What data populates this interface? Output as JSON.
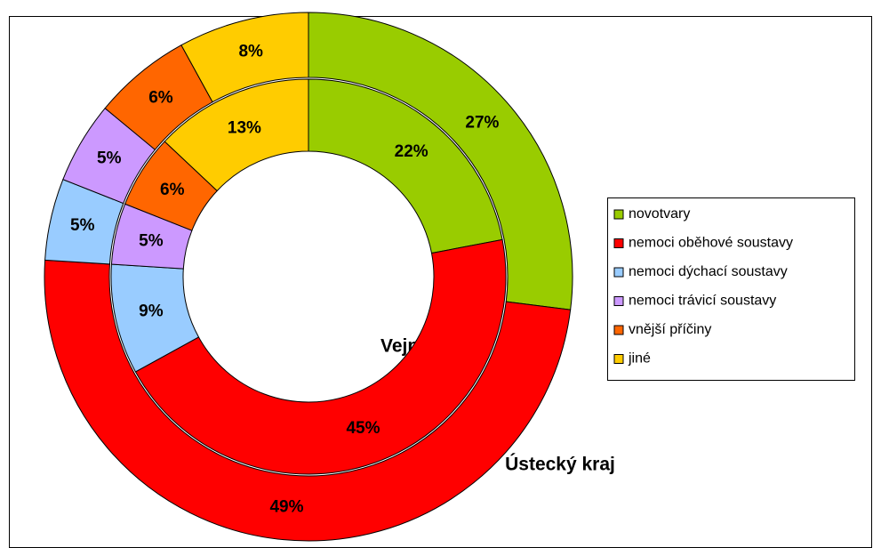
{
  "chart_data": {
    "type": "doughnut",
    "categories": [
      "novotvary",
      "nemoci oběhové soustavy",
      "nemoci dýchací soustavy",
      "nemoci trávicí soustavy",
      "vnější příčiny",
      "jiné"
    ],
    "colors": [
      "#99cc00",
      "#ff0000",
      "#99ccff",
      "#cc99ff",
      "#ff6600",
      "#ffcc00"
    ],
    "series": [
      {
        "name": "Vejprty",
        "values": [
          22,
          45,
          9,
          5,
          6,
          13
        ],
        "value_labels": [
          "22%",
          "45%",
          "9%",
          "5%",
          "6%",
          "13%"
        ]
      },
      {
        "name": "Ústecký kraj",
        "values": [
          27,
          49,
          5,
          5,
          6,
          8
        ],
        "value_labels": [
          "27%",
          "49%",
          "5%",
          "5%",
          "6%",
          "8%"
        ]
      }
    ]
  }
}
